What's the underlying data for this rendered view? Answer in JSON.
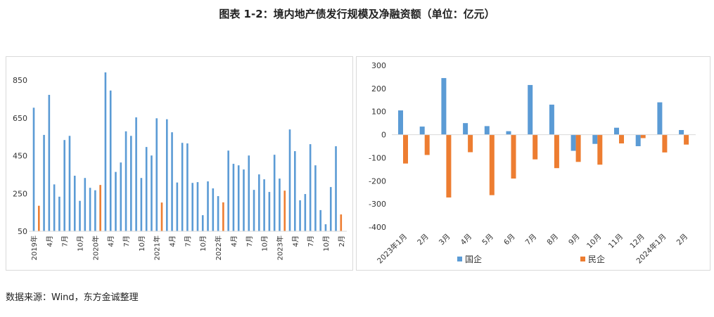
{
  "title": "图表 1-2：境内地产债发行规模及净融资额（单位：亿元）",
  "source": "数据来源：Wind，东方金诚整理",
  "chart_data": [
    {
      "type": "bar",
      "title": "",
      "ylim": [
        50,
        850
      ],
      "yticks": [
        50,
        250,
        450,
        650,
        850
      ],
      "colors": {
        "blue": "#5b9bd5",
        "orange": "#ed7d31"
      },
      "values": [
        704,
        185,
        560,
        772,
        298,
        233,
        533,
        555,
        344,
        211,
        332,
        280,
        267,
        295,
        891,
        795,
        364,
        414,
        579,
        555,
        653,
        332,
        496,
        451,
        648,
        202,
        643,
        574,
        308,
        518,
        515,
        306,
        310,
        135,
        314,
        277,
        236,
        203,
        477,
        407,
        399,
        377,
        451,
        269,
        351,
        325,
        258,
        455,
        329,
        265,
        589,
        474,
        214,
        247,
        511,
        399,
        162,
        87,
        284,
        500,
        139
      ],
      "highlight_indices": [
        1,
        13,
        25,
        37,
        49,
        60
      ],
      "tick_labels": [
        {
          "index": 0,
          "label": "2019年"
        },
        {
          "index": 3,
          "label": "4月"
        },
        {
          "index": 6,
          "label": "7月"
        },
        {
          "index": 9,
          "label": "10月"
        },
        {
          "index": 12,
          "label": "2020年"
        },
        {
          "index": 15,
          "label": "4月"
        },
        {
          "index": 18,
          "label": "7月"
        },
        {
          "index": 21,
          "label": "10月"
        },
        {
          "index": 24,
          "label": "2021年"
        },
        {
          "index": 27,
          "label": "4月"
        },
        {
          "index": 30,
          "label": "7月"
        },
        {
          "index": 33,
          "label": "10月"
        },
        {
          "index": 36,
          "label": "2022年"
        },
        {
          "index": 39,
          "label": "4月"
        },
        {
          "index": 42,
          "label": "7月"
        },
        {
          "index": 45,
          "label": "10月"
        },
        {
          "index": 48,
          "label": "2023年"
        },
        {
          "index": 51,
          "label": "4月"
        },
        {
          "index": 54,
          "label": "7月"
        },
        {
          "index": 57,
          "label": "10月"
        },
        {
          "index": 60,
          "label": "2月"
        }
      ]
    },
    {
      "type": "bar",
      "title": "",
      "ylim": [
        -400,
        300
      ],
      "yticks": [
        300,
        200,
        100,
        0,
        -100,
        -200,
        -300,
        -400
      ],
      "categories": [
        "2023年1月",
        "2月",
        "3月",
        "4月",
        "5月",
        "6月",
        "7月",
        "8月",
        "9月",
        "10月",
        "11月",
        "12月",
        "2024年1月",
        "2月"
      ],
      "series": [
        {
          "name": "国企",
          "color": "#5b9bd5",
          "values": [
            105,
            35,
            245,
            50,
            37,
            15,
            215,
            130,
            -70,
            -40,
            30,
            -50,
            140,
            20
          ]
        },
        {
          "name": "民企",
          "color": "#ed7d31",
          "values": [
            -125,
            -88,
            -272,
            -76,
            -262,
            -190,
            -107,
            -145,
            -118,
            -130,
            -38,
            -15,
            -77,
            -43
          ]
        }
      ],
      "legend": "bottom"
    }
  ]
}
